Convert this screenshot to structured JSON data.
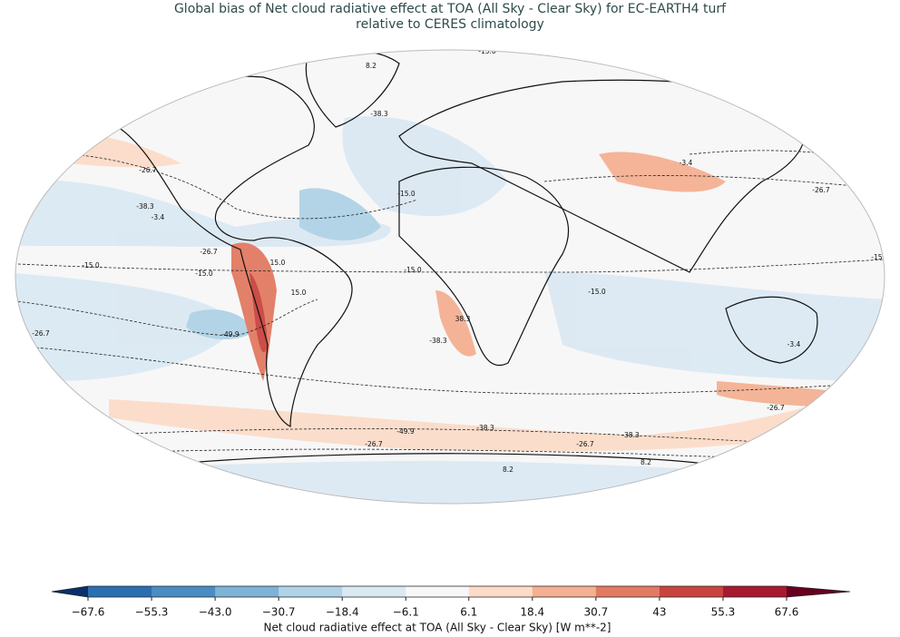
{
  "title_lines": [
    "Global bias of Net cloud radiative effect at TOA (All Sky - Clear Sky) for EC-EARTH4 turf",
    "relative to CERES climatology"
  ],
  "contour_labels": [
    {
      "value": -15.0,
      "label": "-15.0"
    },
    {
      "value": 8.2,
      "label": "8.2"
    },
    {
      "value": -15.0,
      "label": "-15.0"
    },
    {
      "value": -38.3,
      "label": "-38.3"
    },
    {
      "value": -15.0,
      "label": "-15.0"
    },
    {
      "value": -38.3,
      "label": "-38.3"
    },
    {
      "value": -26.7,
      "label": "-26.7"
    },
    {
      "value": -38.3,
      "label": "-38.3"
    },
    {
      "value": -3.4,
      "label": "-3.4"
    },
    {
      "value": -26.7,
      "label": "-26.7"
    },
    {
      "value": -15.0,
      "label": "-15.0"
    },
    {
      "value": -15.0,
      "label": "-15.0"
    },
    {
      "value": -15.0,
      "label": "-15.0"
    },
    {
      "value": 15.0,
      "label": "15.0"
    },
    {
      "value": 15.0,
      "label": "15.0"
    },
    {
      "value": -26.7,
      "label": "-26.7"
    },
    {
      "value": -49.9,
      "label": "-49.9"
    },
    {
      "value": 38.3,
      "label": "38.3"
    },
    {
      "value": -38.3,
      "label": "-38.3"
    },
    {
      "value": -15.0,
      "label": "-15.0"
    },
    {
      "value": -15.0,
      "label": "-15.0"
    },
    {
      "value": -38.3,
      "label": "-38.3"
    },
    {
      "value": -26.7,
      "label": "-26.7"
    },
    {
      "value": -3.4,
      "label": "-3.4"
    },
    {
      "value": -49.9,
      "label": "-49.9"
    },
    {
      "value": -38.3,
      "label": "-38.3"
    },
    {
      "value": -38.3,
      "label": "-38.3"
    },
    {
      "value": -26.7,
      "label": "-26.7"
    },
    {
      "value": -26.7,
      "label": "-26.7"
    },
    {
      "value": -26.7,
      "label": "-26.7"
    },
    {
      "value": -15.0,
      "label": "-15.0"
    },
    {
      "value": -15.0,
      "label": "-15.0"
    },
    {
      "value": 8.2,
      "label": "8.2"
    },
    {
      "value": 8.2,
      "label": "8.2"
    },
    {
      "value": 8.2,
      "label": "8.2"
    },
    {
      "value": -38.3,
      "label": "-38.3"
    },
    {
      "value": -3.4,
      "label": "-3.4"
    },
    {
      "value": -26.7,
      "label": "-26.7"
    },
    {
      "value": -15.0,
      "label": "-15.0"
    }
  ],
  "colorbar": {
    "label": "Net cloud radiative effect at TOA (All Sky - Clear Sky) [W m**-2]",
    "ticks": [
      {
        "value": -67.6,
        "label": "−67.6"
      },
      {
        "value": -55.3,
        "label": "−55.3"
      },
      {
        "value": -43.0,
        "label": "−43.0"
      },
      {
        "value": -30.7,
        "label": "−30.7"
      },
      {
        "value": -18.4,
        "label": "−18.4"
      },
      {
        "value": -6.1,
        "label": "−6.1"
      },
      6.1,
      18.4,
      30.7,
      43.0,
      55.3,
      67.6
    ],
    "colors": [
      "#2a6fb0",
      "#4a8dc3",
      "#7cb3d7",
      "#b0d3e7",
      "#dbe9f3",
      "#f7f7f7",
      "#fcdcc9",
      "#f4b092",
      "#e27a62",
      "#c9443f",
      "#a8182f"
    ],
    "extend_colors": [
      "#08306b",
      "#67001f"
    ]
  }
}
